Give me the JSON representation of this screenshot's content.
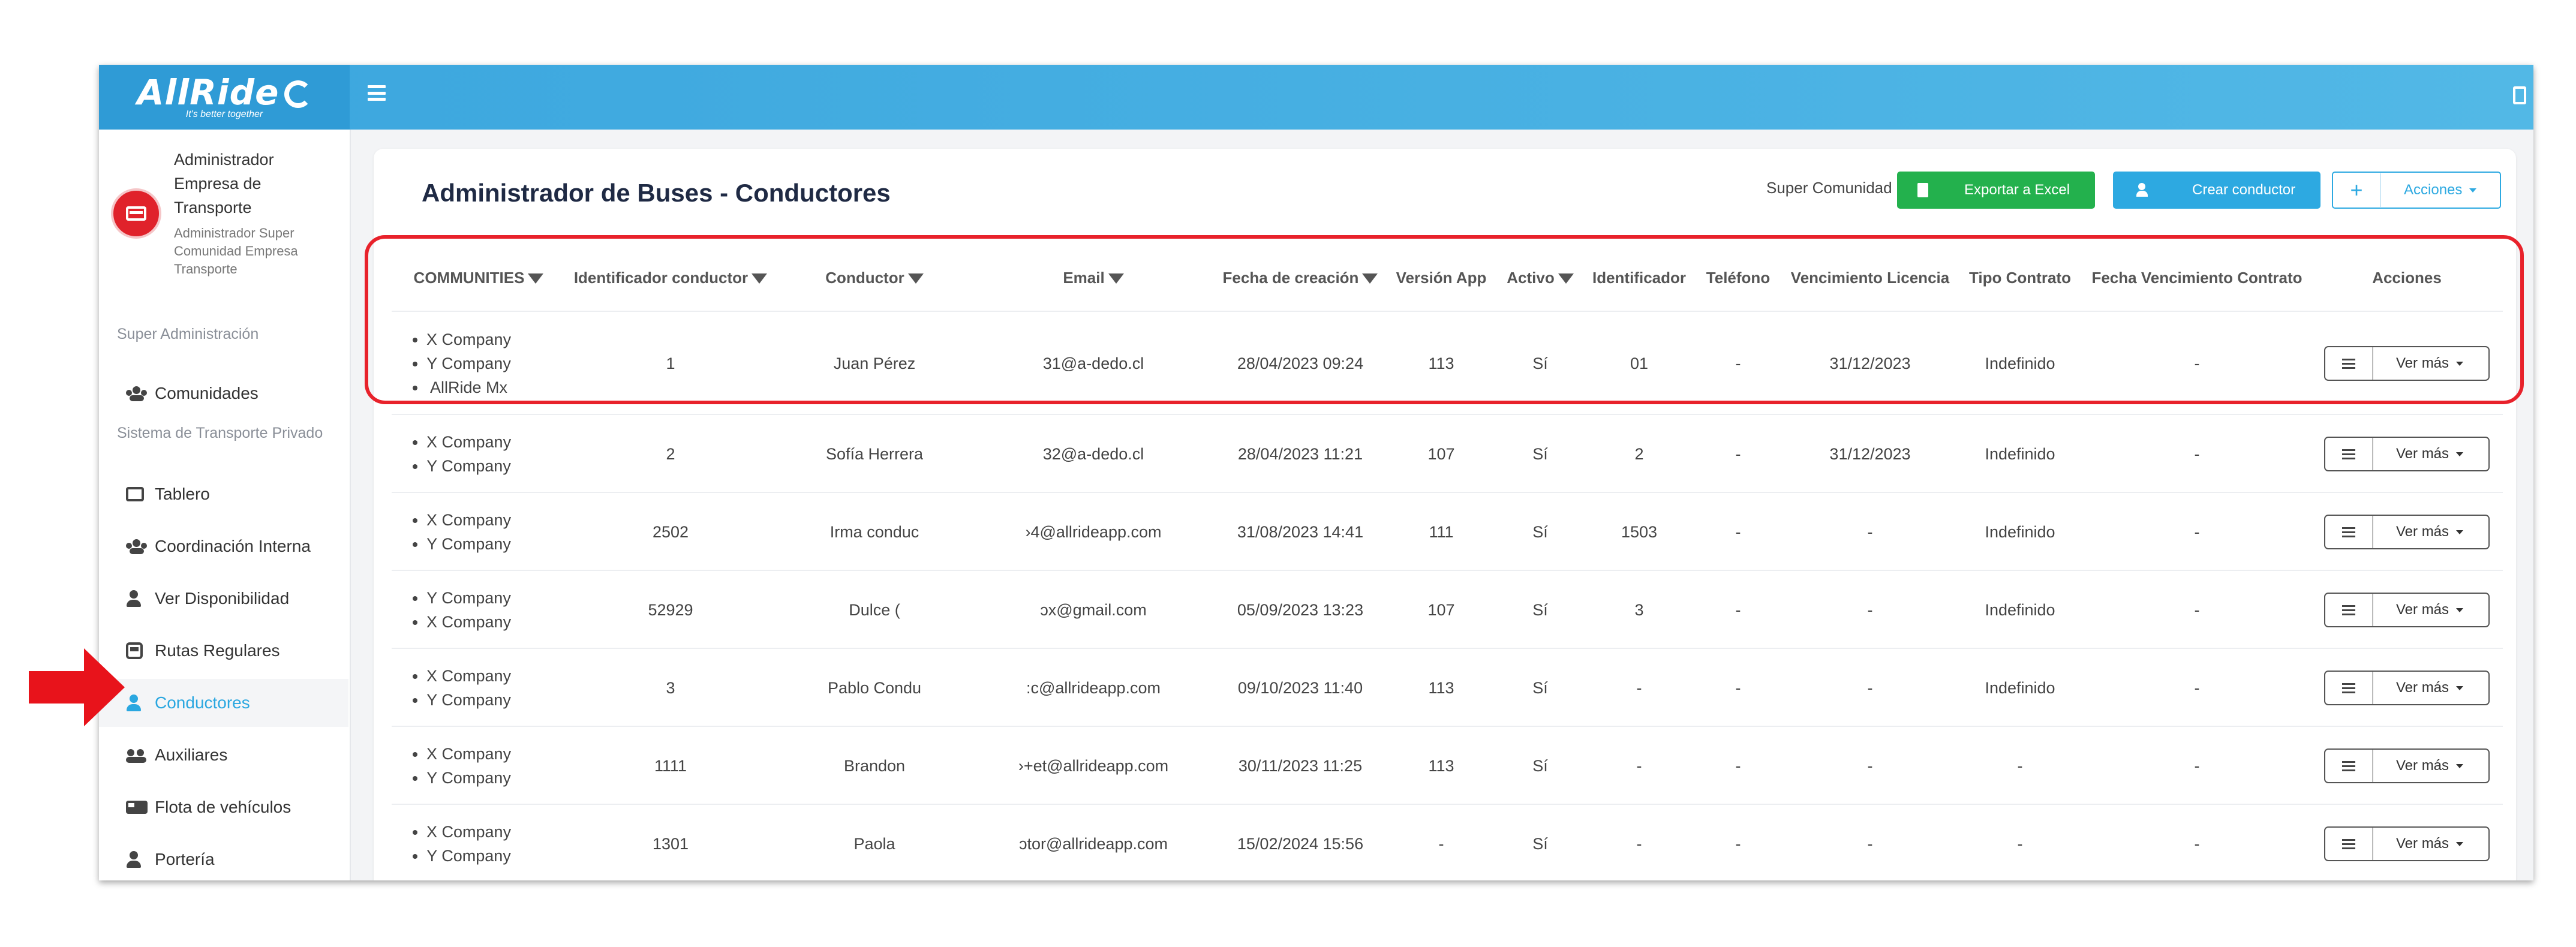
{
  "brand": {
    "name": "AllRide",
    "tagline": "It's better together"
  },
  "user": {
    "name": "Administrador Empresa de Transporte",
    "role": "Administrador Super Comunidad Empresa Transporte"
  },
  "sidebar": {
    "section_super": "Super Administración",
    "section_transport": "Sistema de Transporte Privado",
    "items": [
      {
        "label": "Comunidades",
        "icon": "users-icon"
      },
      {
        "label": "Tablero",
        "icon": "dashboard-icon"
      },
      {
        "label": "Coordinación Interna",
        "icon": "users-icon"
      },
      {
        "label": "Ver Disponibilidad",
        "icon": "user-check-icon"
      },
      {
        "label": "Rutas Regulares",
        "icon": "bus-icon"
      },
      {
        "label": "Conductores",
        "icon": "user-icon",
        "active": true
      },
      {
        "label": "Auxiliares",
        "icon": "users-icon"
      },
      {
        "label": "Flota de vehículos",
        "icon": "truck-icon"
      },
      {
        "label": "Portería",
        "icon": "user-icon"
      }
    ]
  },
  "header": {
    "title": "Administrador de Buses - Conductores",
    "super_community": "Super Comunidad",
    "export_label": "Exportar a Excel",
    "create_label": "Crear conductor",
    "actions_label": "Acciones"
  },
  "table": {
    "columns": [
      "COMMUNITIES",
      "Identificador conductor",
      "Conductor",
      "Email",
      "Fecha de creación",
      "Versión App",
      "Activo",
      "Identificador",
      "Teléfono",
      "Vencimiento Licencia",
      "Tipo Contrato",
      "Fecha Vencimiento Contrato",
      "Acciones"
    ],
    "row_action_label": "Ver más",
    "rows": [
      {
        "communities": [
          "X Company",
          "Y Company",
          "AllRide Mx"
        ],
        "id_conductor": "1",
        "conductor": "Juan Pérez",
        "email": "31@a-dedo.cl",
        "fecha": "28/04/2023 09:24",
        "version": "113",
        "activo": "Sí",
        "identificador": "01",
        "telefono": "-",
        "licencia": "31/12/2023",
        "contrato": "Indefinido",
        "vencimiento_contrato": "-"
      },
      {
        "communities": [
          "X Company",
          "Y Company"
        ],
        "id_conductor": "2",
        "conductor": "Sofía Herrera",
        "email": "32@a-dedo.cl",
        "fecha": "28/04/2023 11:21",
        "version": "107",
        "activo": "Sí",
        "identificador": "2",
        "telefono": "-",
        "licencia": "31/12/2023",
        "contrato": "Indefinido",
        "vencimiento_contrato": "-"
      },
      {
        "communities": [
          "X Company",
          "Y Company"
        ],
        "id_conductor": "2502",
        "conductor": "Irma conduc",
        "email": "›4@allrideapp.com",
        "fecha": "31/08/2023 14:41",
        "version": "111",
        "activo": "Sí",
        "identificador": "1503",
        "telefono": "-",
        "licencia": "-",
        "contrato": "Indefinido",
        "vencimiento_contrato": "-"
      },
      {
        "communities": [
          "Y Company",
          "X Company"
        ],
        "id_conductor": "52929",
        "conductor": "Dulce (",
        "email": "ɔx@gmail.com",
        "fecha": "05/09/2023 13:23",
        "version": "107",
        "activo": "Sí",
        "identificador": "3",
        "telefono": "-",
        "licencia": "-",
        "contrato": "Indefinido",
        "vencimiento_contrato": "-"
      },
      {
        "communities": [
          "X Company",
          "Y Company"
        ],
        "id_conductor": "3",
        "conductor": "Pablo Condu",
        "email": ":c@allrideapp.com",
        "fecha": "09/10/2023 11:40",
        "version": "113",
        "activo": "Sí",
        "identificador": "-",
        "telefono": "-",
        "licencia": "-",
        "contrato": "Indefinido",
        "vencimiento_contrato": "-"
      },
      {
        "communities": [
          "X Company",
          "Y Company"
        ],
        "id_conductor": "1111",
        "conductor": "Brandon",
        "email": "›+et@allrideapp.com",
        "fecha": "30/11/2023 11:25",
        "version": "113",
        "activo": "Sí",
        "identificador": "-",
        "telefono": "-",
        "licencia": "-",
        "contrato": "-",
        "vencimiento_contrato": "-"
      },
      {
        "communities": [
          "X Company",
          "Y Company"
        ],
        "id_conductor": "1301",
        "conductor": "Paola",
        "email": "ɔtor@allrideapp.com",
        "fecha": "15/02/2024 15:56",
        "version": "-",
        "activo": "Sí",
        "identificador": "-",
        "telefono": "-",
        "licencia": "-",
        "contrato": "-",
        "vencimiento_contrato": "-"
      }
    ]
  }
}
